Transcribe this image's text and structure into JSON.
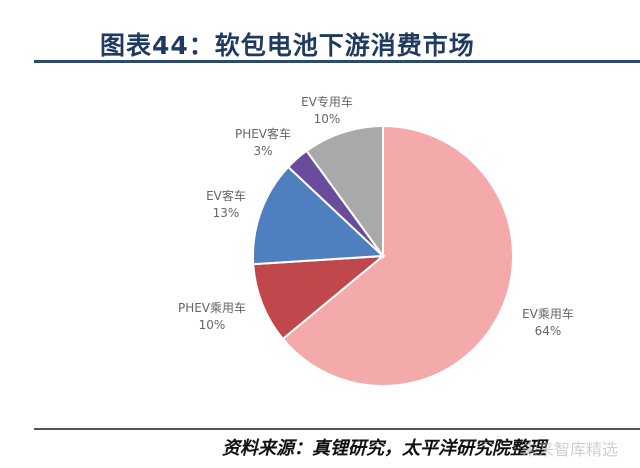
{
  "header": {
    "title": "图表44：软包电池下游消费市场"
  },
  "chart_data": {
    "type": "pie",
    "title": "",
    "slices": [
      {
        "name": "EV乘用车",
        "percent_label": "64%",
        "value": 64,
        "color": "#f4a9ab"
      },
      {
        "name": "PHEV乘用车",
        "percent_label": "10%",
        "value": 10,
        "color": "#c0474b"
      },
      {
        "name": "EV客车",
        "percent_label": "13%",
        "value": 13,
        "color": "#4f7fbf"
      },
      {
        "name": "PHEV客车",
        "percent_label": "3%",
        "value": 3,
        "color": "#6a4c9c"
      },
      {
        "name": "EV专用车",
        "percent_label": "10%",
        "value": 10,
        "color": "#a9a9a9"
      }
    ],
    "start": "12 o'clock",
    "direction": "clockwise"
  },
  "footer": {
    "source": "资料来源：真锂研究，太平洋研究院整理",
    "watermark": "未来智库精选"
  }
}
